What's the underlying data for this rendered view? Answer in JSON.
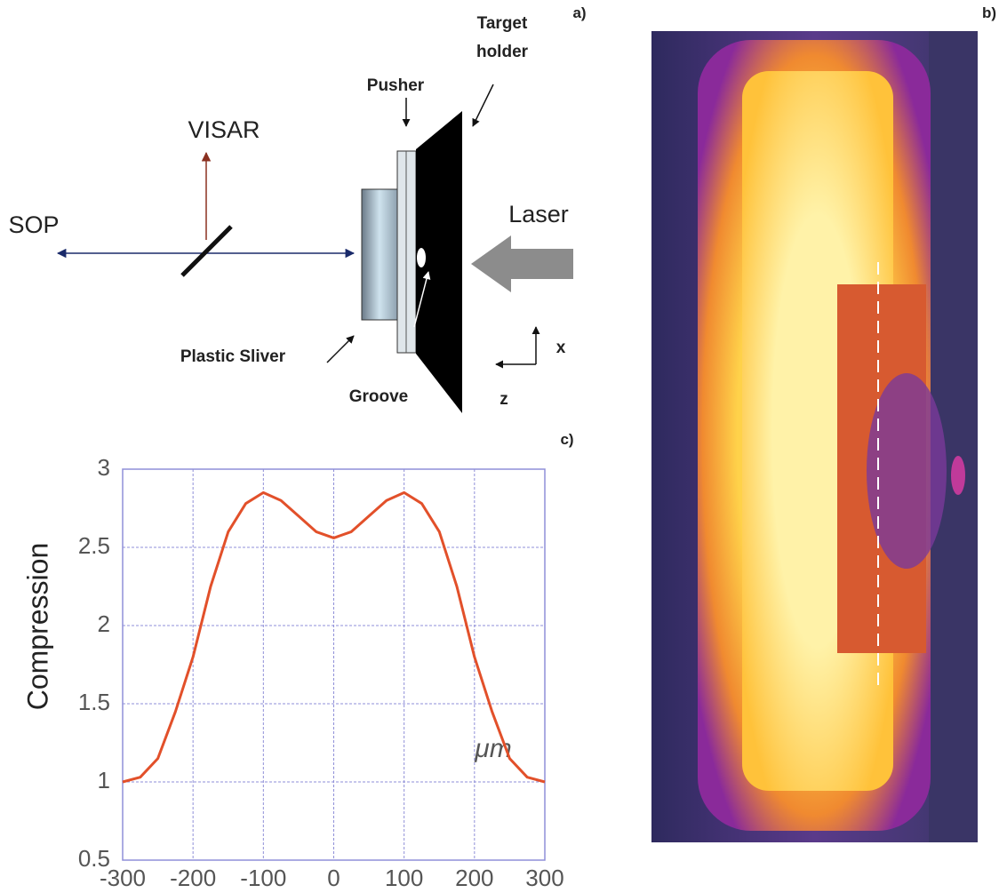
{
  "panel_labels": [
    "a)",
    "b)",
    "c)"
  ],
  "diagram": {
    "target_holder": [
      "Target",
      "holder"
    ],
    "pusher": "Pusher",
    "visar": "VISAR",
    "sop": "SOP",
    "laser": "Laser",
    "plastic_sliver": "Plastic Sliver",
    "groove": "Groove",
    "axis_x": "x",
    "axis_z": "z"
  },
  "chart_data": {
    "type": "line",
    "y_label": "Compression",
    "annotation": "μm",
    "color": "#e2502a",
    "grid": true,
    "x": [
      -300,
      -275,
      -250,
      -225,
      -200,
      -175,
      -150,
      -125,
      -100,
      -75,
      -50,
      -25,
      0,
      25,
      50,
      75,
      100,
      125,
      150,
      175,
      200,
      225,
      250,
      275,
      300
    ],
    "values": [
      1,
      1.03,
      1.15,
      1.45,
      1.8,
      2.25,
      2.6,
      2.78,
      2.85,
      2.8,
      2.7,
      2.6,
      2.56,
      2.6,
      2.7,
      2.8,
      2.85,
      2.78,
      2.6,
      2.25,
      1.8,
      1.45,
      1.15,
      1.03,
      1
    ],
    "xlim": [
      -300,
      300
    ],
    "ylim": [
      0.5,
      3
    ],
    "xticks": [
      -300,
      -200,
      -100,
      0,
      100,
      200,
      300
    ],
    "yticks": [
      0.5,
      1,
      1.5,
      2,
      2.5,
      3
    ]
  }
}
